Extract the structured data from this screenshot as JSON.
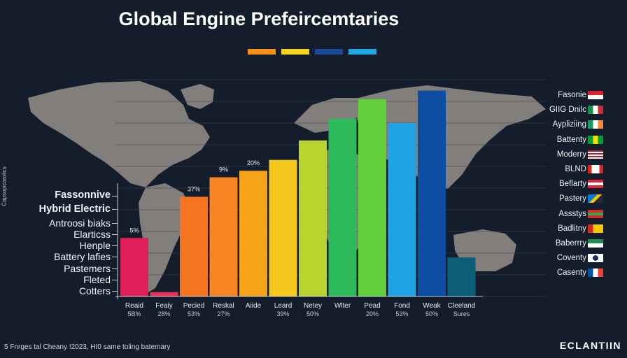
{
  "title": "Global Engine Prefeircemtaries",
  "side_label": "Capsopicarolics",
  "legend_colors": [
    "#f39217",
    "#f2d51c",
    "#1b4a9a",
    "#1fa6e3"
  ],
  "left_labels": [
    "Fassonnive",
    "Hybrid Electric",
    "Antroosi biaks",
    "Elarticss",
    "Henple",
    "Battery lafies",
    "Pastemers",
    "Fleted",
    "Cotters"
  ],
  "right_labels": [
    {
      "label": "Fasonie",
      "flag": "red-white"
    },
    {
      "label": "GIIG Dnilc",
      "flag": "green-white-red"
    },
    {
      "label": "Aypliziing",
      "flag": "green-white-orange"
    },
    {
      "label": "Battenty",
      "flag": "green-yellow"
    },
    {
      "label": "Moderry",
      "flag": "usa"
    },
    {
      "label": "BLND",
      "flag": "canada"
    },
    {
      "label": "Beflarty",
      "flag": "red-white-red"
    },
    {
      "label": "Pastery",
      "flag": "blue-yellow-diagonal"
    },
    {
      "label": "Assstys",
      "flag": "red-green-stripes"
    },
    {
      "label": "Badlitny",
      "flag": "red-yellow"
    },
    {
      "label": "Baberrry",
      "flag": "green-white"
    },
    {
      "label": "Coventy",
      "flag": "white-navy"
    },
    {
      "label": "Casenty",
      "flag": "blue-white-red"
    }
  ],
  "footer": "5 Fnrges tal Cheany !2023, HI0 same toling batemary",
  "brand": "ECLANTIIN",
  "chart_data": {
    "type": "bar",
    "categories": [
      {
        "name": "Reaid",
        "sub": "5B%"
      },
      {
        "name": "Feaiy",
        "sub": "28%"
      },
      {
        "name": "Pecied",
        "sub": "53%"
      },
      {
        "name": "Reskal",
        "sub": "27%"
      },
      {
        "name": "Aiide",
        "sub": ""
      },
      {
        "name": "Leard",
        "sub": "39%"
      },
      {
        "name": "Netey",
        "sub": "50%"
      },
      {
        "name": "Wlter",
        "sub": ""
      },
      {
        "name": "Pead",
        "sub": "20%"
      },
      {
        "name": "Fond",
        "sub": "53%"
      },
      {
        "name": "Weak",
        "sub": "50%"
      },
      {
        "name": "Cleeland",
        "sub": "Sures"
      }
    ],
    "values": [
      27,
      2,
      46,
      55,
      58,
      63,
      72,
      82,
      91,
      80,
      95,
      18
    ],
    "colors": [
      "#e01e5a",
      "#e8325a",
      "#f4741f",
      "#f68424",
      "#f6a31a",
      "#f6c81d",
      "#b8d52f",
      "#2dba5a",
      "#62cf3a",
      "#1ea3e4",
      "#0e4ea2",
      "#0e5e7a"
    ],
    "data_labels": [
      "5%",
      "",
      "37%",
      "9%",
      "20%",
      "",
      "",
      "",
      "",
      "",
      "",
      ""
    ],
    "ylim": [
      0,
      100
    ]
  }
}
